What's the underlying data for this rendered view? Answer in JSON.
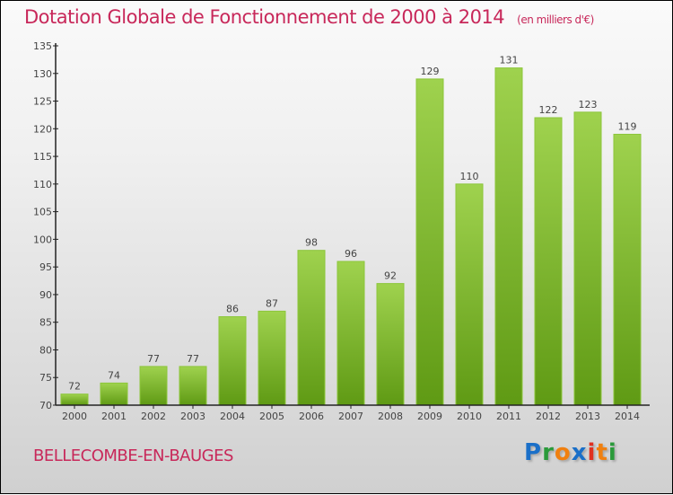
{
  "chart_data": {
    "type": "bar",
    "title": "Dotation Globale de Fonctionnement de 2000 à 2014",
    "subtitle": "(en milliers d'€)",
    "categories": [
      "2000",
      "2001",
      "2002",
      "2003",
      "2004",
      "2005",
      "2006",
      "2007",
      "2008",
      "2009",
      "2010",
      "2011",
      "2012",
      "2013",
      "2014"
    ],
    "values": [
      72,
      74,
      77,
      77,
      86,
      87,
      98,
      96,
      92,
      129,
      110,
      131,
      122,
      123,
      119
    ],
    "xlabel": "",
    "ylabel": "",
    "ylim": [
      70,
      135
    ],
    "yticks": [
      70,
      75,
      80,
      85,
      90,
      95,
      100,
      105,
      110,
      115,
      120,
      125,
      130,
      135
    ],
    "grid": false,
    "bar_color": "#7cb52a"
  },
  "commune": "BELLECOMBE-EN-BAUGES",
  "logo": {
    "letters": [
      "P",
      "r",
      "o",
      "x",
      "i",
      "t",
      "i"
    ],
    "colors": [
      "#1a6fc8",
      "#2a9a3a",
      "#f08010",
      "#1a6fc8",
      "#e03020",
      "#f08010",
      "#2a9a3a"
    ]
  }
}
